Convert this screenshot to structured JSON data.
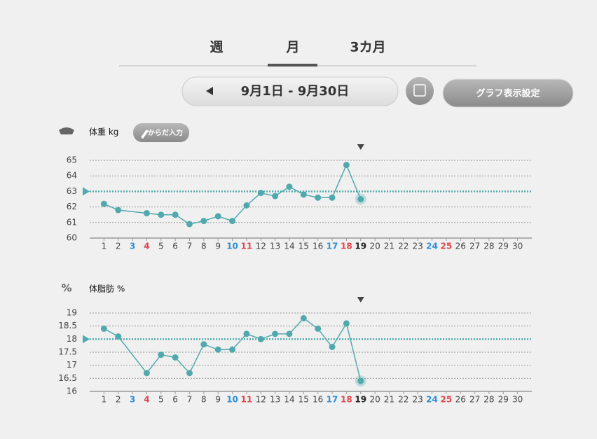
{
  "tabs": [
    "週",
    "月",
    "3カ月"
  ],
  "date_range": "9月1日 - 9月30日",
  "settings_button": "グラフ表示設定",
  "input_button": "からだ入力",
  "chart_data": [
    {
      "type": "line",
      "title": "体重 kg",
      "color": "#52a9ad",
      "x": [
        1,
        2,
        4,
        5,
        6,
        7,
        8,
        9,
        10,
        11,
        12,
        13,
        14,
        15,
        16,
        17,
        18,
        19
      ],
      "values": [
        62.2,
        61.8,
        61.6,
        61.5,
        61.5,
        60.9,
        61.1,
        61.4,
        61.1,
        62.1,
        62.9,
        62.7,
        63.3,
        62.8,
        62.6,
        62.6,
        64.7,
        62.5
      ],
      "target": 63,
      "marker_x": 19,
      "xlim": [
        0,
        31
      ],
      "xticks": [
        1,
        2,
        3,
        4,
        5,
        6,
        7,
        8,
        9,
        10,
        11,
        12,
        13,
        14,
        15,
        16,
        17,
        18,
        19,
        20,
        21,
        22,
        23,
        24,
        25,
        26,
        27,
        28,
        29,
        30
      ],
      "xtick_colors": [
        "#444",
        "#444",
        "#2f8fd8",
        "#e0474c",
        "#444",
        "#444",
        "#444",
        "#444",
        "#444",
        "#2f8fd8",
        "#e0474c",
        "#444",
        "#444",
        "#444",
        "#444",
        "#444",
        "#2f8fd8",
        "#e0474c",
        "#222",
        "#444",
        "#444",
        "#444",
        "#444",
        "#2f8fd8",
        "#e0474c",
        "#444",
        "#444",
        "#444",
        "#444",
        "#444"
      ],
      "ylim": [
        60,
        65
      ],
      "yticks": [
        60,
        61,
        62,
        63,
        64,
        65
      ],
      "grid": true
    },
    {
      "type": "line",
      "title": "体脂肪 %",
      "color": "#52a9ad",
      "x": [
        1,
        2,
        4,
        5,
        6,
        7,
        8,
        9,
        10,
        11,
        12,
        13,
        14,
        15,
        16,
        17,
        18,
        19
      ],
      "values": [
        18.4,
        18.1,
        16.7,
        17.4,
        17.3,
        16.7,
        17.8,
        17.6,
        17.6,
        18.2,
        18.0,
        18.2,
        18.2,
        18.8,
        18.4,
        17.7,
        18.6,
        16.4
      ],
      "target": 18,
      "marker_x": 19,
      "xlim": [
        0,
        31
      ],
      "xticks": [
        1,
        2,
        3,
        4,
        5,
        6,
        7,
        8,
        9,
        10,
        11,
        12,
        13,
        14,
        15,
        16,
        17,
        18,
        19,
        20,
        21,
        22,
        23,
        24,
        25,
        26,
        27,
        28,
        29,
        30
      ],
      "xtick_colors": [
        "#444",
        "#444",
        "#2f8fd8",
        "#e0474c",
        "#444",
        "#444",
        "#444",
        "#444",
        "#444",
        "#2f8fd8",
        "#e0474c",
        "#444",
        "#444",
        "#444",
        "#444",
        "#444",
        "#2f8fd8",
        "#e0474c",
        "#222",
        "#444",
        "#444",
        "#444",
        "#444",
        "#2f8fd8",
        "#e0474c",
        "#444",
        "#444",
        "#444",
        "#444",
        "#444"
      ],
      "ylim": [
        16,
        19
      ],
      "yticks": [
        16,
        16.5,
        17,
        17.5,
        18,
        18.5,
        19
      ],
      "grid": true
    }
  ]
}
